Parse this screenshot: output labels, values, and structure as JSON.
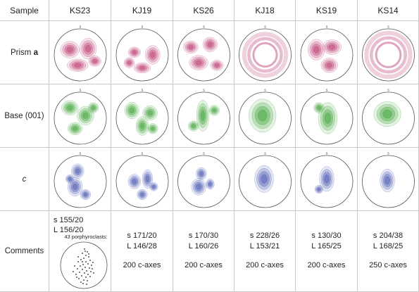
{
  "header": {
    "label": "Sample"
  },
  "samples": [
    "KS23",
    "KJ19",
    "KS26",
    "KJ18",
    "KS19",
    "KS14"
  ],
  "rows": [
    {
      "key": "prism",
      "label": "Prism ",
      "bold_suffix": "a",
      "color": "#c0487a"
    },
    {
      "key": "base",
      "label": "Base (001)",
      "bold_suffix": "",
      "color": "#4aa843"
    },
    {
      "key": "c",
      "label": "c",
      "bold_suffix": "",
      "color": "#5561b5"
    }
  ],
  "comments": {
    "label": "Comments",
    "items": [
      {
        "s": "s 155/20",
        "L": "L 156/20",
        "axes": "",
        "note": "43 porphyroclasts:"
      },
      {
        "s": "s 171/20",
        "L": "L 146/28",
        "axes": "200 c-axes",
        "note": ""
      },
      {
        "s": "s 170/30",
        "L": "L 160/26",
        "axes": "200 c-axes",
        "note": ""
      },
      {
        "s": "s 228/26",
        "L": "L 153/21",
        "axes": "200 c-axes",
        "note": ""
      },
      {
        "s": "s 130/30",
        "L": "L 165/25",
        "axes": "200 c-axes",
        "note": ""
      },
      {
        "s": "s 204/38",
        "L": "L 168/25",
        "axes": "250 c-axes",
        "note": ""
      }
    ]
  },
  "north_mark": "s",
  "colors": {
    "grid_line": "#c9c9c9",
    "net_outline": "#555555"
  }
}
